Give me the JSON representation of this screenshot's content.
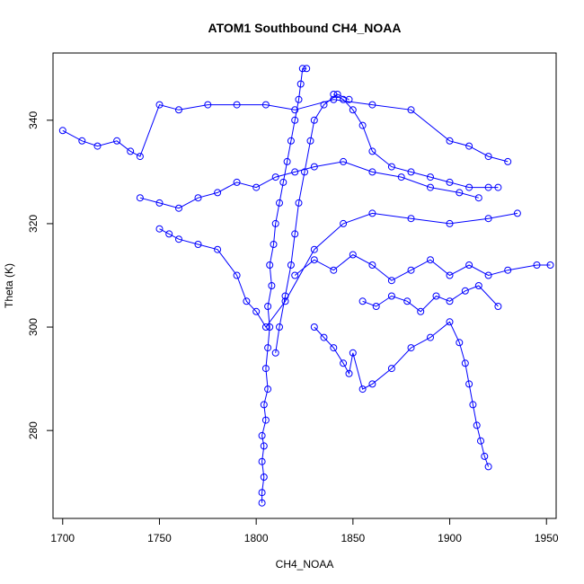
{
  "chart_data": {
    "type": "scatter",
    "title": "ATOM1 Southbound CH4_NOAA",
    "xlabel": "CH4_NOAA",
    "ylabel": "Theta (K)",
    "xlim": [
      1695,
      1955
    ],
    "ylim": [
      263,
      353
    ],
    "xticks": [
      1700,
      1750,
      1800,
      1850,
      1900,
      1950
    ],
    "yticks": [
      280,
      300,
      320,
      340
    ],
    "point_color": "#0000ff",
    "marker": "open-circle",
    "connect_points": true,
    "grid": false,
    "legend": "none",
    "series": [
      {
        "values_xy": [
          [
            1803,
            266
          ],
          [
            1803,
            268
          ],
          [
            1804,
            271
          ],
          [
            1803,
            274
          ],
          [
            1804,
            277
          ],
          [
            1803,
            279
          ],
          [
            1805,
            282
          ],
          [
            1804,
            285
          ],
          [
            1806,
            288
          ],
          [
            1805,
            292
          ],
          [
            1806,
            296
          ],
          [
            1807,
            300
          ],
          [
            1806,
            304
          ],
          [
            1808,
            308
          ],
          [
            1807,
            312
          ],
          [
            1809,
            316
          ],
          [
            1810,
            320
          ],
          [
            1812,
            324
          ],
          [
            1814,
            328
          ],
          [
            1816,
            332
          ],
          [
            1818,
            336
          ],
          [
            1820,
            340
          ],
          [
            1822,
            344
          ],
          [
            1823,
            347
          ],
          [
            1824,
            350
          ],
          [
            1826,
            350
          ]
        ]
      },
      {
        "values_xy": [
          [
            1700,
            338
          ],
          [
            1710,
            336
          ],
          [
            1718,
            335
          ],
          [
            1728,
            336
          ],
          [
            1735,
            334
          ],
          [
            1740,
            333
          ],
          [
            1750,
            343
          ],
          [
            1760,
            342
          ],
          [
            1775,
            343
          ],
          [
            1790,
            343
          ],
          [
            1805,
            343
          ],
          [
            1820,
            342
          ],
          [
            1840,
            344
          ],
          [
            1860,
            343
          ],
          [
            1880,
            342
          ],
          [
            1900,
            336
          ],
          [
            1910,
            335
          ],
          [
            1920,
            333
          ],
          [
            1930,
            332
          ]
        ]
      },
      {
        "values_xy": [
          [
            1750,
            319
          ],
          [
            1755,
            318
          ],
          [
            1760,
            317
          ],
          [
            1770,
            316
          ],
          [
            1780,
            315
          ],
          [
            1790,
            310
          ],
          [
            1795,
            305
          ],
          [
            1800,
            303
          ],
          [
            1805,
            300
          ],
          [
            1815,
            305
          ],
          [
            1830,
            315
          ],
          [
            1845,
            320
          ],
          [
            1860,
            322
          ],
          [
            1880,
            321
          ],
          [
            1900,
            320
          ],
          [
            1920,
            321
          ],
          [
            1935,
            322
          ]
        ]
      },
      {
        "values_xy": [
          [
            1830,
            300
          ],
          [
            1835,
            298
          ],
          [
            1840,
            296
          ],
          [
            1845,
            293
          ],
          [
            1848,
            291
          ],
          [
            1850,
            295
          ],
          [
            1855,
            288
          ],
          [
            1860,
            289
          ],
          [
            1870,
            292
          ],
          [
            1880,
            296
          ],
          [
            1890,
            298
          ],
          [
            1900,
            301
          ],
          [
            1905,
            297
          ],
          [
            1908,
            293
          ],
          [
            1910,
            289
          ],
          [
            1912,
            285
          ],
          [
            1914,
            281
          ],
          [
            1916,
            278
          ],
          [
            1918,
            275
          ],
          [
            1920,
            273
          ]
        ]
      },
      {
        "values_xy": [
          [
            1840,
            345
          ],
          [
            1845,
            344
          ],
          [
            1850,
            342
          ],
          [
            1855,
            339
          ],
          [
            1860,
            334
          ],
          [
            1870,
            331
          ],
          [
            1880,
            330
          ],
          [
            1890,
            329
          ],
          [
            1900,
            328
          ],
          [
            1910,
            327
          ],
          [
            1920,
            327
          ],
          [
            1925,
            327
          ]
        ]
      },
      {
        "values_xy": [
          [
            1820,
            310
          ],
          [
            1830,
            313
          ],
          [
            1840,
            311
          ],
          [
            1850,
            314
          ],
          [
            1860,
            312
          ],
          [
            1870,
            309
          ],
          [
            1880,
            311
          ],
          [
            1890,
            313
          ],
          [
            1900,
            310
          ],
          [
            1910,
            312
          ],
          [
            1920,
            310
          ],
          [
            1930,
            311
          ],
          [
            1945,
            312
          ],
          [
            1952,
            312
          ]
        ]
      },
      {
        "values_xy": [
          [
            1740,
            325
          ],
          [
            1750,
            324
          ],
          [
            1760,
            323
          ],
          [
            1770,
            325
          ],
          [
            1780,
            326
          ],
          [
            1790,
            328
          ],
          [
            1800,
            327
          ],
          [
            1810,
            329
          ],
          [
            1820,
            330
          ],
          [
            1830,
            331
          ],
          [
            1845,
            332
          ],
          [
            1860,
            330
          ],
          [
            1875,
            329
          ],
          [
            1890,
            327
          ],
          [
            1905,
            326
          ],
          [
            1915,
            325
          ]
        ]
      },
      {
        "values_xy": [
          [
            1810,
            295
          ],
          [
            1812,
            300
          ],
          [
            1815,
            306
          ],
          [
            1818,
            312
          ],
          [
            1820,
            318
          ],
          [
            1822,
            324
          ],
          [
            1825,
            330
          ],
          [
            1828,
            336
          ],
          [
            1830,
            340
          ],
          [
            1835,
            343
          ],
          [
            1842,
            345
          ],
          [
            1848,
            344
          ]
        ]
      },
      {
        "values_xy": [
          [
            1855,
            305
          ],
          [
            1862,
            304
          ],
          [
            1870,
            306
          ],
          [
            1878,
            305
          ],
          [
            1885,
            303
          ],
          [
            1893,
            306
          ],
          [
            1900,
            305
          ],
          [
            1908,
            307
          ],
          [
            1915,
            308
          ],
          [
            1925,
            304
          ]
        ]
      }
    ]
  }
}
